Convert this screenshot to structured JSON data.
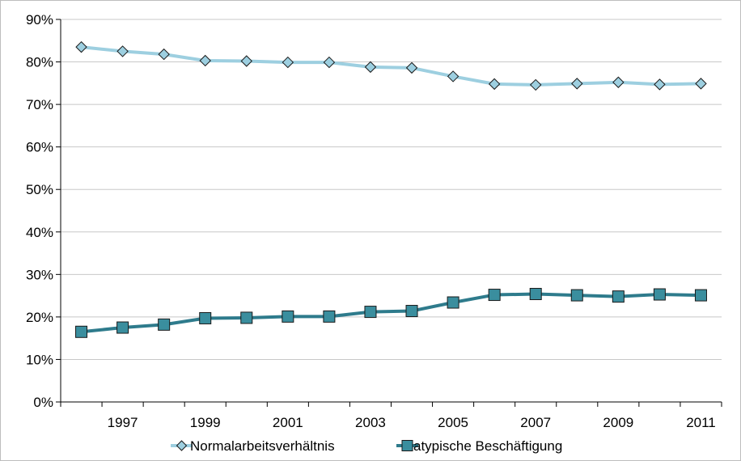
{
  "chart_data": {
    "type": "line",
    "x": [
      "1996",
      "1997",
      "1998",
      "1999",
      "2000",
      "2001",
      "2002",
      "2003",
      "2004",
      "2005",
      "2006",
      "2007",
      "2008",
      "2009",
      "2010",
      "2011"
    ],
    "x_tick_labels": [
      "1997",
      "1999",
      "2001",
      "2003",
      "2005",
      "2007",
      "2009",
      "2011"
    ],
    "y_tick_labels": [
      "0%",
      "10%",
      "20%",
      "30%",
      "40%",
      "50%",
      "60%",
      "70%",
      "80%",
      "90%"
    ],
    "ylim": [
      0,
      90
    ],
    "grid": true,
    "legend_position": "bottom",
    "series": [
      {
        "name": "Normalarbeitsverhältnis",
        "color": "#9DCFE0",
        "marker": "diamond",
        "values": [
          83.5,
          82.5,
          81.8,
          80.3,
          80.2,
          79.9,
          79.9,
          78.8,
          78.6,
          76.6,
          74.8,
          74.6,
          74.9,
          75.2,
          74.7,
          74.9
        ]
      },
      {
        "name": "atypische Beschäftigung",
        "color": "#2E7B8C",
        "marker_fill": "#3A8E9E",
        "marker": "square",
        "values": [
          16.5,
          17.5,
          18.2,
          19.7,
          19.8,
          20.1,
          20.1,
          21.2,
          21.4,
          23.4,
          25.2,
          25.4,
          25.1,
          24.8,
          25.3,
          25.1
        ]
      }
    ]
  }
}
